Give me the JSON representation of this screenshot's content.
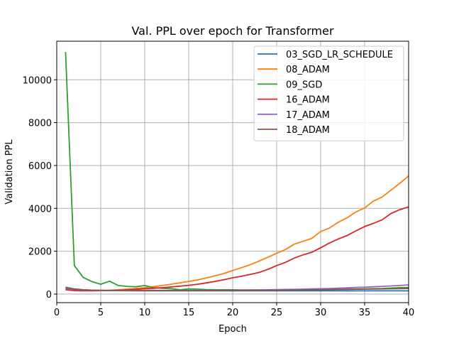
{
  "chart_data": {
    "type": "line",
    "title": "Val. PPL over epoch for Transformer",
    "xlabel": "Epoch",
    "ylabel": "Validation PPL",
    "xlim": [
      0,
      40
    ],
    "ylim": [
      -400,
      11800
    ],
    "xticks": [
      0,
      5,
      10,
      15,
      20,
      25,
      30,
      35,
      40
    ],
    "yticks": [
      0,
      2000,
      4000,
      6000,
      8000,
      10000
    ],
    "grid": true,
    "legend_position": "top-right",
    "x": [
      1,
      2,
      3,
      4,
      5,
      6,
      7,
      8,
      9,
      10,
      11,
      12,
      13,
      14,
      15,
      16,
      17,
      18,
      19,
      20,
      21,
      22,
      23,
      24,
      25,
      26,
      27,
      28,
      29,
      30,
      31,
      32,
      33,
      34,
      35,
      36,
      37,
      38,
      39,
      40
    ],
    "series": [
      {
        "name": "03_SGD_LR_SCHEDULE",
        "color": "#1f77b4",
        "values": [
          320,
          240,
          200,
          180,
          170,
          165,
          160,
          158,
          155,
          153,
          152,
          151,
          150,
          150,
          150,
          150,
          150,
          150,
          150,
          150,
          150,
          150,
          150,
          150,
          150,
          150,
          150,
          150,
          150,
          150,
          150,
          150,
          150,
          150,
          150,
          150,
          150,
          150,
          150,
          150
        ]
      },
      {
        "name": "08_ADAM",
        "color": "#ff7f0e",
        "values": [
          240,
          200,
          180,
          170,
          170,
          180,
          200,
          230,
          260,
          300,
          350,
          400,
          460,
          520,
          590,
          660,
          750,
          850,
          960,
          1100,
          1230,
          1370,
          1540,
          1720,
          1900,
          2080,
          2330,
          2460,
          2600,
          2920,
          3080,
          3350,
          3560,
          3830,
          4020,
          4340,
          4530,
          4850,
          5170,
          5510
        ]
      },
      {
        "name": "09_SGD",
        "color": "#2ca02c",
        "values": [
          11300,
          1330,
          780,
          580,
          460,
          600,
          400,
          360,
          340,
          400,
          300,
          270,
          250,
          200,
          240,
          230,
          210,
          200,
          200,
          200,
          190,
          190,
          190,
          190,
          190,
          200,
          200,
          200,
          200,
          220,
          220,
          220,
          230,
          230,
          240,
          250,
          260,
          280,
          300,
          310
        ]
      },
      {
        "name": "16_ADAM",
        "color": "#d62728",
        "values": [
          200,
          160,
          150,
          150,
          160,
          170,
          180,
          200,
          220,
          250,
          270,
          300,
          330,
          370,
          410,
          460,
          520,
          590,
          670,
          760,
          830,
          920,
          1010,
          1150,
          1330,
          1480,
          1680,
          1830,
          1950,
          2160,
          2380,
          2570,
          2730,
          2950,
          3150,
          3300,
          3470,
          3760,
          3940,
          4070
        ]
      },
      {
        "name": "17_ADAM",
        "color": "#9467bd",
        "values": [
          260,
          210,
          190,
          180,
          170,
          170,
          170,
          170,
          170,
          170,
          170,
          170,
          170,
          170,
          170,
          170,
          170,
          170,
          175,
          180,
          185,
          190,
          195,
          200,
          210,
          215,
          220,
          230,
          240,
          250,
          260,
          275,
          290,
          305,
          320,
          340,
          360,
          380,
          400,
          430
        ]
      },
      {
        "name": "18_ADAM",
        "color": "#8c564b",
        "values": [
          300,
          230,
          200,
          180,
          170,
          165,
          165,
          165,
          165,
          165,
          165,
          165,
          165,
          165,
          165,
          165,
          165,
          165,
          170,
          170,
          170,
          175,
          175,
          180,
          180,
          185,
          190,
          195,
          200,
          205,
          210,
          215,
          220,
          225,
          230,
          235,
          240,
          245,
          250,
          260
        ]
      }
    ]
  }
}
